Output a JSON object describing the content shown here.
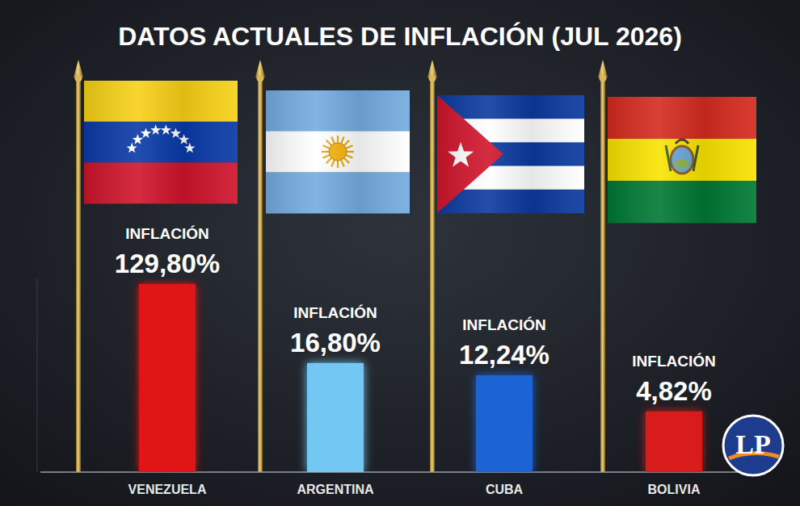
{
  "chart_data": {
    "type": "bar",
    "title": "DATOS ACTUALES DE INFLACIÓN (JUL 2026)",
    "categories": [
      "VENEZUELA",
      "ARGENTINA",
      "CUBA",
      "BOLIVIA"
    ],
    "values": [
      129.8,
      16.8,
      12.24,
      4.82
    ],
    "value_labels": [
      "129,80%",
      "16,80%",
      "12,24%",
      "4,82%"
    ],
    "colors": [
      "#e01414",
      "#72c8f2",
      "#1f63d6",
      "#d81a1a"
    ],
    "log": "y",
    "ylim": [
      1,
      150
    ],
    "grid": false,
    "tick_labels": false,
    "data_labels": true,
    "annotations": {
      "bar_caption": "INFLACIÓN",
      "logo": "LP"
    }
  }
}
